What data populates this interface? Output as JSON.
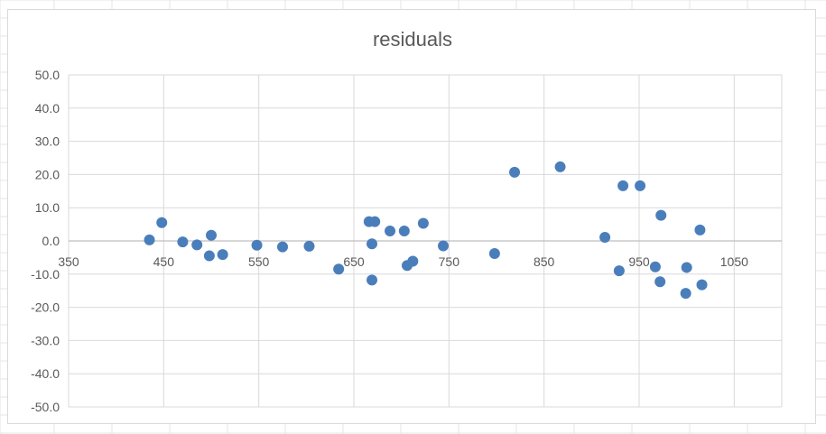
{
  "chart_data": {
    "type": "scatter",
    "title": "residuals",
    "xlabel": "",
    "ylabel": "",
    "xlim": [
      350,
      1100
    ],
    "ylim": [
      -50,
      50
    ],
    "x_ticks": [
      350,
      450,
      550,
      650,
      750,
      850,
      950,
      1050
    ],
    "x_tick_labels": [
      "350",
      "450",
      "550",
      "650",
      "750",
      "850",
      "950",
      "1050"
    ],
    "y_ticks": [
      50,
      40,
      30,
      20,
      10,
      0,
      -10,
      -20,
      -30,
      -40,
      -50
    ],
    "y_tick_labels": [
      "50.0",
      "40.0",
      "30.0",
      "20.0",
      "10.0",
      "0.0",
      "-10.0",
      "-20.0",
      "-30.0",
      "-40.0",
      "-50.0"
    ],
    "grid": {
      "horizontal": true,
      "vertical": true
    },
    "marker_color": "#4a7ebb",
    "gridline_color": "#d9d9d9",
    "series": [
      {
        "points": [
          [
            435,
            0.3
          ],
          [
            448,
            5.5
          ],
          [
            470,
            -0.3
          ],
          [
            485,
            -1.2
          ],
          [
            498,
            -4.5
          ],
          [
            500,
            1.7
          ],
          [
            512,
            -4.1
          ],
          [
            548,
            -1.3
          ],
          [
            575,
            -1.8
          ],
          [
            603,
            -1.6
          ],
          [
            634,
            -8.5
          ],
          [
            666,
            5.8
          ],
          [
            672,
            5.8
          ],
          [
            669,
            -0.9
          ],
          [
            669,
            -11.8
          ],
          [
            688,
            3.0
          ],
          [
            703,
            3.0
          ],
          [
            706,
            -7.4
          ],
          [
            712,
            -6.1
          ],
          [
            723,
            5.3
          ],
          [
            744,
            -1.5
          ],
          [
            798,
            -3.8
          ],
          [
            819,
            20.7
          ],
          [
            867,
            22.3
          ],
          [
            914,
            1.1
          ],
          [
            929,
            -9.0
          ],
          [
            933,
            16.6
          ],
          [
            951,
            16.6
          ],
          [
            967,
            -7.8
          ],
          [
            972,
            -12.3
          ],
          [
            973,
            7.7
          ],
          [
            999,
            -15.8
          ],
          [
            1000,
            -8.0
          ],
          [
            1014,
            3.3
          ],
          [
            1016,
            -13.2
          ]
        ]
      }
    ]
  }
}
